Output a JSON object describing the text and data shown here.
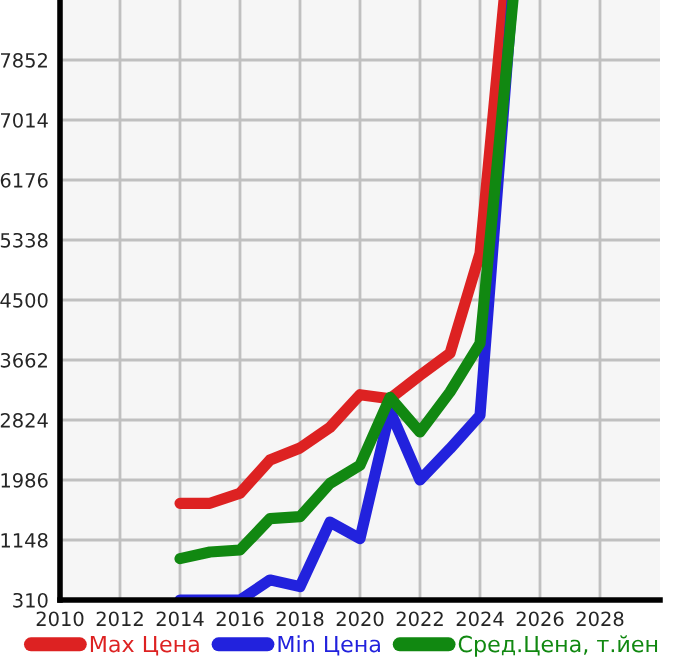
{
  "chart_data": {
    "type": "line",
    "xlim": [
      2010,
      2030
    ],
    "xticks": [
      2010,
      2012,
      2014,
      2016,
      2018,
      2020,
      2022,
      2024,
      2026,
      2028
    ],
    "ylim": [
      310,
      8690
    ],
    "yticks": [
      310,
      1148,
      1986,
      2824,
      3662,
      4500,
      5338,
      6176,
      7014,
      7852
    ],
    "grid": true,
    "legend": "bottom",
    "marker": "none",
    "line_style": "solid",
    "series": [
      {
        "name": "Max Цена",
        "color": "#dd2222",
        "x": [
          2014,
          2015,
          2016,
          2017,
          2018,
          2019,
          2020,
          2021,
          2022,
          2023,
          2024,
          2024.8
        ],
        "values": [
          1660,
          1660,
          1800,
          2265,
          2433,
          2721,
          3178,
          3122,
          3447,
          3755,
          5152,
          8690
        ]
      },
      {
        "name": "Min Цена",
        "color": "#2222dd",
        "x": [
          2014,
          2015,
          2016,
          2017,
          2018,
          2019,
          2020,
          2021,
          2022,
          2023,
          2024,
          2025.07
        ],
        "values": [
          310,
          310,
          310,
          590,
          496,
          1399,
          1167,
          2954,
          1986,
          2423,
          2889,
          8690
        ]
      },
      {
        "name": "Сред.Цена, т.йен",
        "color": "#118811",
        "x": [
          2014,
          2015,
          2016,
          2017,
          2018,
          2019,
          2020,
          2021,
          2022,
          2023,
          2024,
          2025.1
        ],
        "values": [
          887,
          980,
          1008,
          1446,
          1474,
          1939,
          2191,
          3140,
          2656,
          3215,
          3894,
          8690
        ]
      }
    ]
  }
}
